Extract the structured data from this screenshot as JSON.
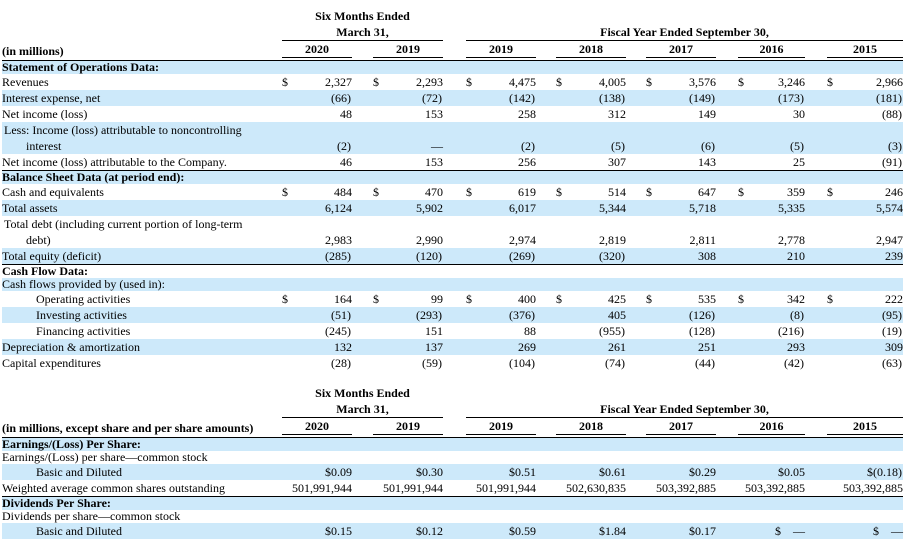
{
  "palette": {
    "stripe_blue": "#cde9fa",
    "rule_black": "#000000",
    "text": "#000000",
    "background": "#ffffff"
  },
  "currency_symbol": "$",
  "tables": [
    {
      "name": "selected-financial-data",
      "corner_label": "(in millions)",
      "six_months_title": "Six Months Ended",
      "six_months_subtitle": "March 31,",
      "fiscal_title": "Fiscal Year Ended September 30,",
      "six_months_years": [
        "2020",
        "2019"
      ],
      "fiscal_years": [
        "2019",
        "2018",
        "2017",
        "2016",
        "2015"
      ],
      "rows": [
        {
          "label": "Statement of Operations Data:",
          "style": "section",
          "shade": true,
          "values": [
            "",
            "",
            "",
            "",
            "",
            "",
            ""
          ]
        },
        {
          "label": "Revenues",
          "shade": false,
          "dollar": true,
          "values": [
            "2,327",
            "2,293",
            "4,475",
            "4,005",
            "3,576",
            "3,246",
            "2,966"
          ]
        },
        {
          "label": "Interest expense, net",
          "shade": true,
          "values": [
            "(66)",
            "(72)",
            "(142)",
            "(138)",
            "(149)",
            "(173)",
            "(181)"
          ]
        },
        {
          "label": "Net income (loss)",
          "shade": false,
          "values": [
            "48",
            "153",
            "258",
            "312",
            "149",
            "30",
            "(88)"
          ]
        },
        {
          "label": "Less: Income (loss) attributable to noncontrolling\ninterest",
          "wrap": true,
          "shade": true,
          "values": [
            "(2)",
            "—",
            "(2)",
            "(5)",
            "(6)",
            "(5)",
            "(3)"
          ]
        },
        {
          "label": "Net income (loss) attributable to the Company.",
          "shade": false,
          "values": [
            "46",
            "153",
            "256",
            "307",
            "143",
            "25",
            "(91)"
          ]
        },
        {
          "label": "Balance Sheet Data (at period end):",
          "style": "section",
          "shade": true,
          "topline": true,
          "values": [
            "",
            "",
            "",
            "",
            "",
            "",
            ""
          ]
        },
        {
          "label": "Cash and equivalents",
          "shade": false,
          "dollar": true,
          "values": [
            "484",
            "470",
            "619",
            "514",
            "647",
            "359",
            "246"
          ]
        },
        {
          "label": "Total assets",
          "shade": true,
          "values": [
            "6,124",
            "5,902",
            "6,017",
            "5,344",
            "5,718",
            "5,335",
            "5,574"
          ]
        },
        {
          "label": "Total debt (including current portion of long-term\ndebt)",
          "wrap": true,
          "shade": false,
          "values": [
            "2,983",
            "2,990",
            "2,974",
            "2,819",
            "2,811",
            "2,778",
            "2,947"
          ]
        },
        {
          "label": "Total equity (deficit)",
          "shade": true,
          "values": [
            "(285)",
            "(120)",
            "(269)",
            "(320)",
            "308",
            "210",
            "239"
          ]
        },
        {
          "label": "Cash Flow Data:",
          "style": "section",
          "shade": false,
          "topline": true,
          "values": [
            "",
            "",
            "",
            "",
            "",
            "",
            ""
          ]
        },
        {
          "label": "Cash flows provided by (used in):",
          "shade": true,
          "values": [
            "",
            "",
            "",
            "",
            "",
            "",
            ""
          ]
        },
        {
          "label": "Operating activities",
          "indent": true,
          "shade": false,
          "dollar": true,
          "values": [
            "164",
            "99",
            "400",
            "425",
            "535",
            "342",
            "222"
          ]
        },
        {
          "label": "Investing activities",
          "indent": true,
          "shade": true,
          "values": [
            "(51)",
            "(293)",
            "(376)",
            "405",
            "(126)",
            "(8)",
            "(95)"
          ]
        },
        {
          "label": "Financing activities",
          "indent": true,
          "shade": false,
          "values": [
            "(245)",
            "151",
            "88",
            "(955)",
            "(128)",
            "(216)",
            "(19)"
          ]
        },
        {
          "label": "Depreciation & amortization",
          "shade": true,
          "values": [
            "132",
            "137",
            "269",
            "261",
            "251",
            "293",
            "309"
          ]
        },
        {
          "label": "Capital expenditures",
          "shade": false,
          "values": [
            "(28)",
            "(59)",
            "(104)",
            "(74)",
            "(44)",
            "(42)",
            "(63)"
          ]
        }
      ]
    },
    {
      "name": "per-share-data",
      "corner_label": "(in millions, except share and per share amounts)",
      "six_months_title": "Six Months Ended",
      "six_months_subtitle": "March 31,",
      "fiscal_title": "Fiscal Year Ended September 30,",
      "six_months_years": [
        "2020",
        "2019"
      ],
      "fiscal_years": [
        "2019",
        "2018",
        "2017",
        "2016",
        "2015"
      ],
      "rows": [
        {
          "label": "Earnings/(Loss) Per Share:",
          "style": "section",
          "shade": true,
          "values": [
            "",
            "",
            "",
            "",
            "",
            "",
            ""
          ]
        },
        {
          "label": "Earnings/(Loss) per share—common stock",
          "shade": false,
          "values": [
            "",
            "",
            "",
            "",
            "",
            "",
            ""
          ]
        },
        {
          "label": "Basic and Diluted",
          "indent": true,
          "shade": true,
          "values": [
            "$0.09",
            "$0.30",
            "$0.51",
            "$0.61",
            "$0.29",
            "$0.05",
            "$(0.18)"
          ]
        },
        {
          "label": "Weighted average common shares outstanding",
          "shade": false,
          "values": [
            "501,991,944",
            "501,991,944",
            "501,991,944",
            "502,630,835",
            "503,392,885",
            "503,392,885",
            "503,392,885"
          ]
        },
        {
          "label": "Dividends Per Share:",
          "style": "section",
          "shade": true,
          "topline": true,
          "values": [
            "",
            "",
            "",
            "",
            "",
            "",
            ""
          ]
        },
        {
          "label": "Dividends per share—common stock",
          "shade": false,
          "values": [
            "",
            "",
            "",
            "",
            "",
            "",
            ""
          ]
        },
        {
          "label": "Basic and Diluted",
          "indent": true,
          "shade": true,
          "values": [
            "$0.15",
            "$0.12",
            "$0.59",
            "$1.84",
            "$0.17",
            "$ —",
            "$ —"
          ]
        }
      ]
    }
  ]
}
